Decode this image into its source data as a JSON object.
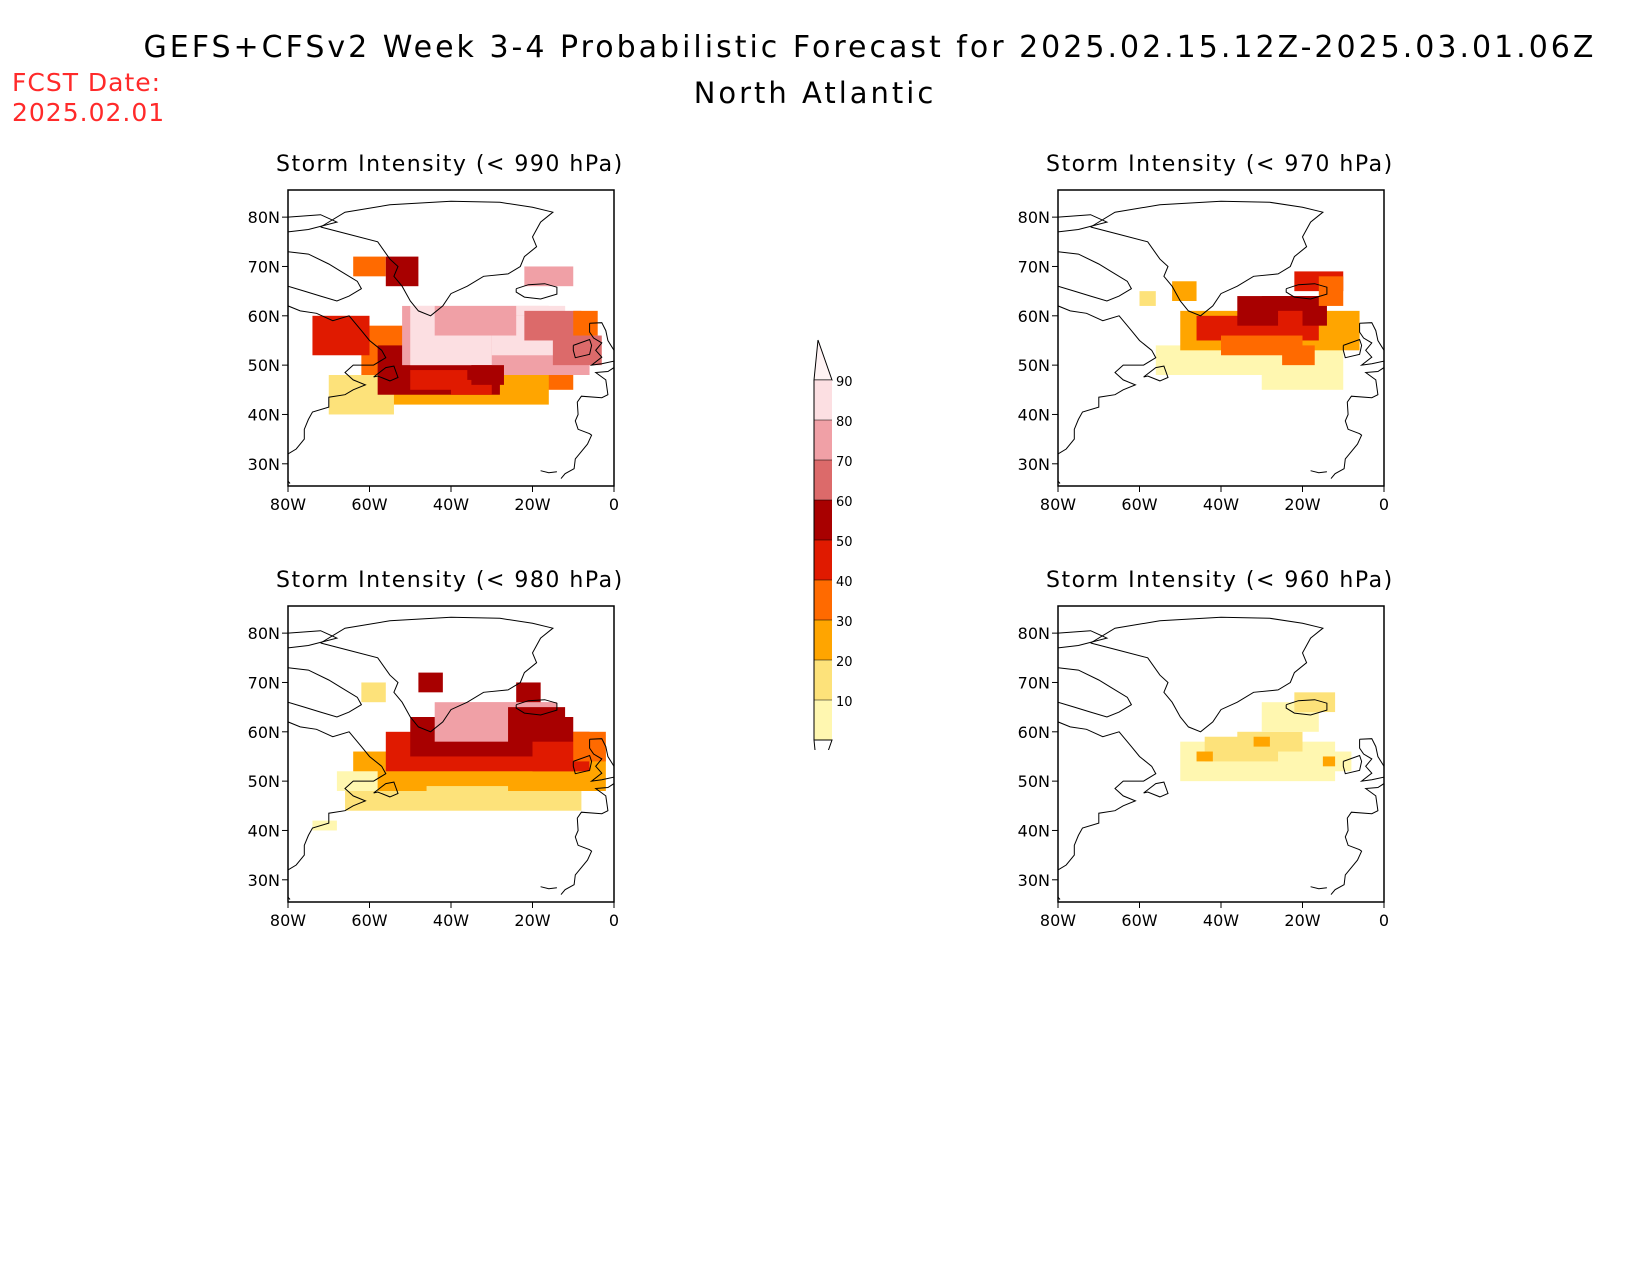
{
  "header": {
    "title": "GEFS+CFSv2 Week 3-4 Probabilistic Forecast for 2025.02.15.12Z-2025.03.01.06Z",
    "subtitle": "North Atlantic",
    "fcst_label": "FCST Date:",
    "fcst_date": "2025.02.01"
  },
  "axes": {
    "lat_labels": [
      "80N",
      "70N",
      "60N",
      "50N",
      "40N",
      "30N"
    ],
    "lon_labels": [
      "80W",
      "60W",
      "40W",
      "20W",
      "0"
    ]
  },
  "colorbar": {
    "levels": [
      "10",
      "20",
      "30",
      "40",
      "50",
      "60",
      "70",
      "80",
      "90"
    ],
    "colors": [
      "#fff7b0",
      "#fde27a",
      "#ffa500",
      "#ff6a00",
      "#e01a00",
      "#a80000",
      "#dc6a6a",
      "#f0a0a6",
      "#fcdfe2"
    ]
  },
  "panels": [
    {
      "id": "p990",
      "title": "Storm Intensity (< 990 hPa)"
    },
    {
      "id": "p970",
      "title": "Storm Intensity (< 970 hPa)"
    },
    {
      "id": "p980",
      "title": "Storm Intensity (< 980 hPa)"
    },
    {
      "id": "p960",
      "title": "Storm Intensity (< 960 hPa)"
    }
  ]
}
